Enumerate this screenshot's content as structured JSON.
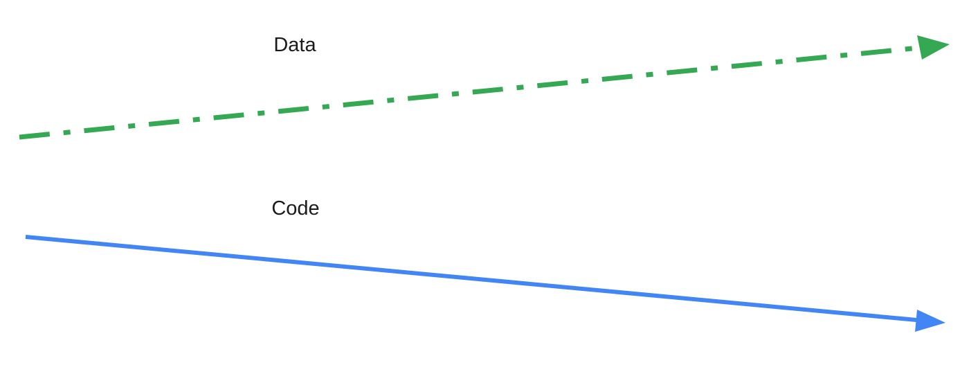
{
  "labels": {
    "data": "Data",
    "code": "Code"
  },
  "arrows": {
    "data": {
      "color": "#34A853",
      "style": "dash-dot"
    },
    "code": {
      "color": "#4285F4",
      "style": "solid"
    }
  }
}
